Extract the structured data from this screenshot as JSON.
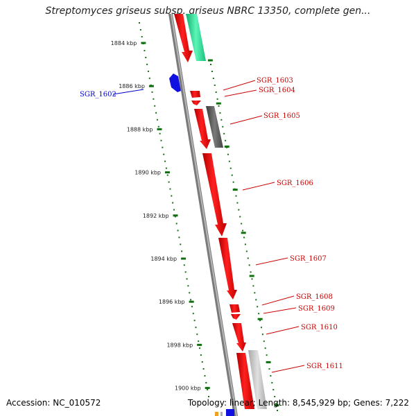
{
  "title": "Streptomyces griseus subsp. griseus NBRC 13350, complete gen...",
  "footer": {
    "accession": "Accession: NC_010572",
    "topology": "Topology: linear; Length: 8,545,929 bp; Genes: 7,222"
  },
  "colors": {
    "cds": "#ff0000",
    "cds_minus": "#0000ff",
    "rna": "#22e39a",
    "pseudo_dark": "#555555",
    "pseudo_light": "#bdbdbd",
    "ruler": "#107010",
    "label_red": "#cc0000",
    "label_blue": "#0000cc"
  },
  "ruler_ticks": [
    {
      "label": "1884 kbp"
    },
    {
      "label": "1886 kbp"
    },
    {
      "label": "1888 kbp"
    },
    {
      "label": "1890 kbp"
    },
    {
      "label": "1892 kbp"
    },
    {
      "label": "1894 kbp"
    },
    {
      "label": "1896 kbp"
    },
    {
      "label": "1898 kbp"
    },
    {
      "label": "1900 kbp"
    }
  ],
  "gene_labels": [
    {
      "name": "SGR_1602",
      "strand": "minus"
    },
    {
      "name": "SGR_1603",
      "strand": "plus"
    },
    {
      "name": "SGR_1604",
      "strand": "plus"
    },
    {
      "name": "SGR_1605",
      "strand": "plus"
    },
    {
      "name": "SGR_1606",
      "strand": "plus"
    },
    {
      "name": "SGR_1607",
      "strand": "plus"
    },
    {
      "name": "SGR_1608",
      "strand": "plus"
    },
    {
      "name": "SGR_1609",
      "strand": "plus"
    },
    {
      "name": "SGR_1610",
      "strand": "plus"
    },
    {
      "name": "SGR_1611",
      "strand": "plus"
    }
  ]
}
